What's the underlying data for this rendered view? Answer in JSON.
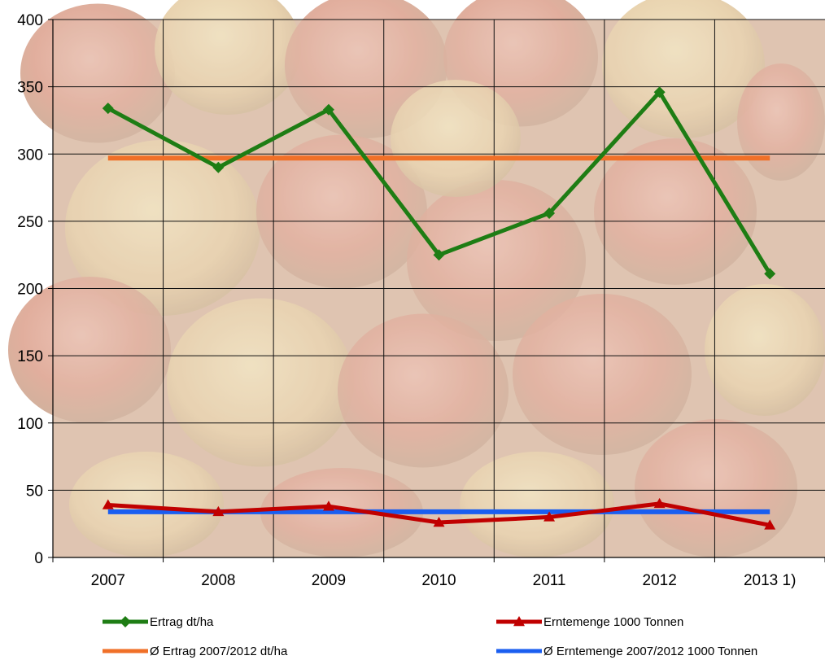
{
  "chart_data": {
    "type": "line",
    "categories": [
      "2007",
      "2008",
      "2009",
      "2010",
      "2011",
      "2012",
      "2013 1)"
    ],
    "ylim": [
      0,
      400
    ],
    "yticks": [
      0,
      50,
      100,
      150,
      200,
      250,
      300,
      350,
      400
    ],
    "grid": true,
    "legend_position": "bottom",
    "series": [
      {
        "name": "Ertrag dt/ha",
        "values": [
          334,
          290,
          333,
          225,
          256,
          346,
          211
        ],
        "color": "#1e7d14",
        "marker": "diamond"
      },
      {
        "name": "Erntemenge 1000 Tonnen",
        "values": [
          39,
          34,
          38,
          26,
          30,
          40,
          24
        ],
        "color": "#c00000",
        "marker": "triangle"
      },
      {
        "name": "Ø Ertrag 2007/2012 dt/ha",
        "values": [
          297,
          297,
          297,
          297,
          297,
          297,
          297
        ],
        "color": "#f07028",
        "marker": "none"
      },
      {
        "name": "Ø Erntemenge 2007/2012 1000 Tonnen",
        "values": [
          34,
          34,
          34,
          34,
          34,
          34,
          34
        ],
        "color": "#1a5ef0",
        "marker": "none"
      }
    ],
    "background": "apple-photo",
    "plot_fill": "#d8b8a0",
    "grid_color": "#111111"
  }
}
